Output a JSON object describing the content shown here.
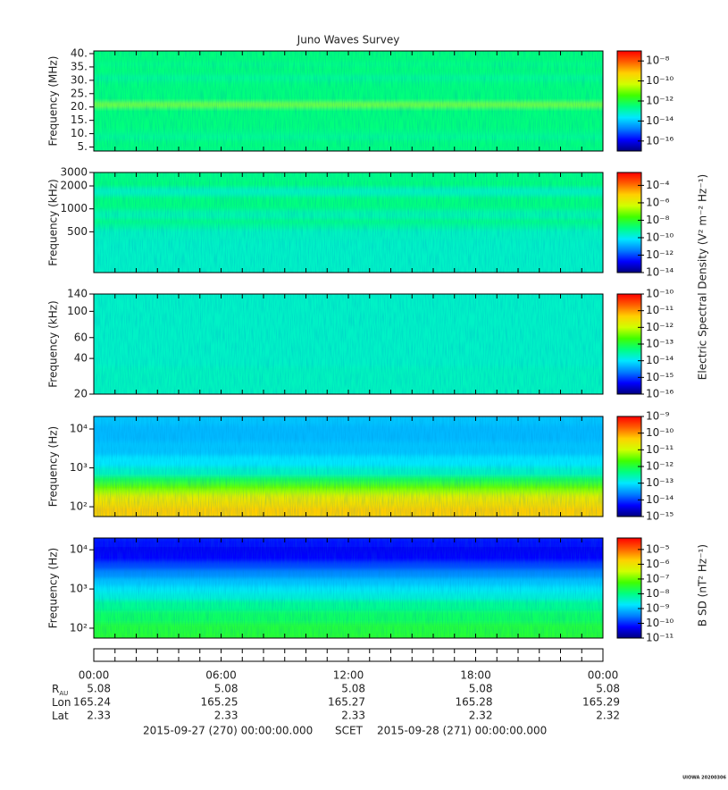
{
  "chart_data": {
    "type": "spectrogram",
    "title": "Juno Waves Survey",
    "colormap": [
      "#00007f",
      "#0000ff",
      "#0080ff",
      "#00e8ff",
      "#00ff80",
      "#40ff00",
      "#d0ff00",
      "#ffd000",
      "#ff6000",
      "#ff0000"
    ],
    "panels": [
      {
        "ylabel": "Frequency (MHz)",
        "yscale": "linear",
        "ylim": [
          3.5,
          41
        ],
        "yticks": [
          {
            "value": 5,
            "label": "5."
          },
          {
            "value": 10,
            "label": "10."
          },
          {
            "value": 15,
            "label": "15."
          },
          {
            "value": 20,
            "label": "20."
          },
          {
            "value": 25,
            "label": "25."
          },
          {
            "value": 30,
            "label": "30."
          },
          {
            "value": 35,
            "label": "35."
          },
          {
            "value": 40,
            "label": "40."
          }
        ],
        "profile": {
          "frequencies": [
            3.5,
            6,
            8,
            9,
            10,
            14,
            19,
            20,
            21,
            22,
            23,
            28,
            30,
            31,
            33,
            35,
            36,
            37,
            41
          ],
          "levels": [
            2.5e-13,
            3e-13,
            2.5e-13,
            1.5e-13,
            2.5e-13,
            3e-13,
            3e-13,
            5e-13,
            1.6e-11,
            5e-13,
            3e-13,
            3e-13,
            2.5e-13,
            1.6e-13,
            3e-13,
            3e-13,
            2e-13,
            3e-13,
            3e-13
          ]
        },
        "colorbar": {
          "log": true,
          "clim": [
            1e-17,
            1e-07
          ],
          "ticks": [
            {
              "value": 1e-16,
              "label": "10⁻¹⁶"
            },
            {
              "value": 1e-14,
              "label": "10⁻¹⁴"
            },
            {
              "value": 1e-12,
              "label": "10⁻¹²"
            },
            {
              "value": 1e-10,
              "label": "10⁻¹⁰"
            },
            {
              "value": 1e-08,
              "label": "10⁻⁸"
            }
          ]
        }
      },
      {
        "ylabel": "Frequency (kHz)",
        "yscale": "log",
        "ylim": [
          146,
          3000
        ],
        "yticks": [
          500,
          1000,
          2000,
          3000
        ],
        "profile": {
          "frequencies": [
            146,
            300,
            500,
            600,
            700,
            800,
            900,
            1100,
            1400,
            1600,
            1800,
            2100,
            2500,
            3000
          ],
          "levels": [
            2.5e-10,
            2.5e-10,
            2.8e-10,
            6e-10,
            1.2e-09,
            4e-10,
            5e-10,
            1.3e-09,
            1.3e-09,
            3e-10,
            3e-10,
            1.5e-09,
            1.2e-09,
            1e-09
          ]
        },
        "colorbar": {
          "log": true,
          "clim": [
            1e-14,
            0.003
          ],
          "label": "Electric Spectral Density (V² m⁻² Hz⁻¹)",
          "ticks": [
            {
              "value": 1e-14,
              "label": "10⁻¹⁴"
            },
            {
              "value": 1e-12,
              "label": "10⁻¹²"
            },
            {
              "value": 1e-10,
              "label": "10⁻¹⁰"
            },
            {
              "value": 1e-08,
              "label": "10⁻⁸"
            },
            {
              "value": 1e-06,
              "label": "10⁻⁶"
            },
            {
              "value": 0.0001,
              "label": "10⁻⁴"
            }
          ]
        }
      },
      {
        "ylabel": "Frequency (kHz)",
        "yscale": "log",
        "ylim": [
          20,
          140
        ],
        "yticks": [
          20,
          40,
          60,
          100,
          140
        ],
        "profile": {
          "frequencies": [
            20,
            60,
            140
          ],
          "levels": [
            2.2e-14,
            2e-14,
            2e-14
          ]
        },
        "colorbar": {
          "log": true,
          "clim": [
            1e-16,
            1e-10
          ],
          "ticks": [
            {
              "value": 1e-16,
              "label": "10⁻¹⁶"
            },
            {
              "value": 1e-15,
              "label": "10⁻¹⁵"
            },
            {
              "value": 1e-14,
              "label": "10⁻¹⁴"
            },
            {
              "value": 1e-13,
              "label": "10⁻¹³"
            },
            {
              "value": 1e-12,
              "label": "10⁻¹²"
            },
            {
              "value": 1e-11,
              "label": "10⁻¹¹"
            },
            {
              "value": 1e-10,
              "label": "10⁻¹⁰"
            }
          ]
        }
      },
      {
        "ylabel": "Frequency (Hz)",
        "yscale": "log",
        "ylim": [
          56,
          21000
        ],
        "yticks": [
          {
            "value": 100,
            "label": "10²"
          },
          {
            "value": 1000,
            "label": "10³"
          },
          {
            "value": 10000,
            "label": "10⁴"
          }
        ],
        "profile": {
          "frequencies": [
            56,
            80,
            120,
            180,
            250,
            350,
            500,
            800,
            1500,
            3000,
            8000,
            21000
          ],
          "levels": [
            4e-11,
            5e-11,
            3e-11,
            2e-11,
            6e-12,
            2.5e-12,
            8e-13,
            2e-13,
            1e-13,
            6e-14,
            5e-14,
            6e-14
          ]
        },
        "colorbar": {
          "log": true,
          "clim": [
            1e-15,
            1e-09
          ],
          "ticks": [
            {
              "value": 1e-15,
              "label": "10⁻¹⁵"
            },
            {
              "value": 1e-14,
              "label": "10⁻¹⁴"
            },
            {
              "value": 1e-13,
              "label": "10⁻¹³"
            },
            {
              "value": 1e-12,
              "label": "10⁻¹²"
            },
            {
              "value": 1e-11,
              "label": "10⁻¹¹"
            },
            {
              "value": 1e-10,
              "label": "10⁻¹⁰"
            },
            {
              "value": 1e-09,
              "label": "10⁻⁹"
            }
          ]
        }
      },
      {
        "ylabel": "Frequency (Hz)",
        "yscale": "log",
        "ylim": [
          56,
          20000
        ],
        "yticks": [
          {
            "value": 100,
            "label": "10²"
          },
          {
            "value": 1000,
            "label": "10³"
          },
          {
            "value": 10000,
            "label": "10⁴"
          }
        ],
        "profile": {
          "frequencies": [
            56,
            100,
            200,
            400,
            700,
            1000,
            1500,
            2500,
            4000,
            6000,
            10000,
            15000,
            20000
          ],
          "levels": [
            3e-08,
            2.5e-08,
            1.5e-08,
            8e-09,
            3e-09,
            2e-09,
            1e-09,
            4e-10,
            1.5e-10,
            6e-11,
            5e-11,
            7e-11,
            8e-11
          ]
        },
        "colorbar": {
          "log": true,
          "clim": [
            1e-11,
            6e-05
          ],
          "label": "B SD (nT² Hz⁻¹)",
          "ticks": [
            {
              "value": 1e-11,
              "label": "10⁻¹¹"
            },
            {
              "value": 1e-10,
              "label": "10⁻¹⁰"
            },
            {
              "value": 1e-09,
              "label": "10⁻⁹"
            },
            {
              "value": 1e-08,
              "label": "10⁻⁸"
            },
            {
              "value": 1e-07,
              "label": "10⁻⁷"
            },
            {
              "value": 1e-06,
              "label": "10⁻⁶"
            },
            {
              "value": 1e-05,
              "label": "10⁻⁵"
            }
          ]
        }
      }
    ],
    "x_ticks": [
      "00:00",
      "06:00",
      "12:00",
      "18:00",
      "00:00"
    ],
    "ephemeris": [
      {
        "label": "R",
        "subscript": "AU",
        "values": [
          5.08,
          5.08,
          5.08,
          5.08,
          5.08
        ]
      },
      {
        "label": "Lon",
        "values": [
          165.24,
          165.25,
          165.27,
          165.28,
          165.29
        ]
      },
      {
        "label": "Lat",
        "values": [
          2.33,
          2.33,
          2.33,
          2.32,
          2.32
        ]
      }
    ],
    "time_range": {
      "start": "2015-09-27 (270) 00:00:00.000",
      "label": "SCET",
      "end": "2015-09-28 (271) 00:00:00.000"
    },
    "credit": "UIOWA 20200306"
  }
}
